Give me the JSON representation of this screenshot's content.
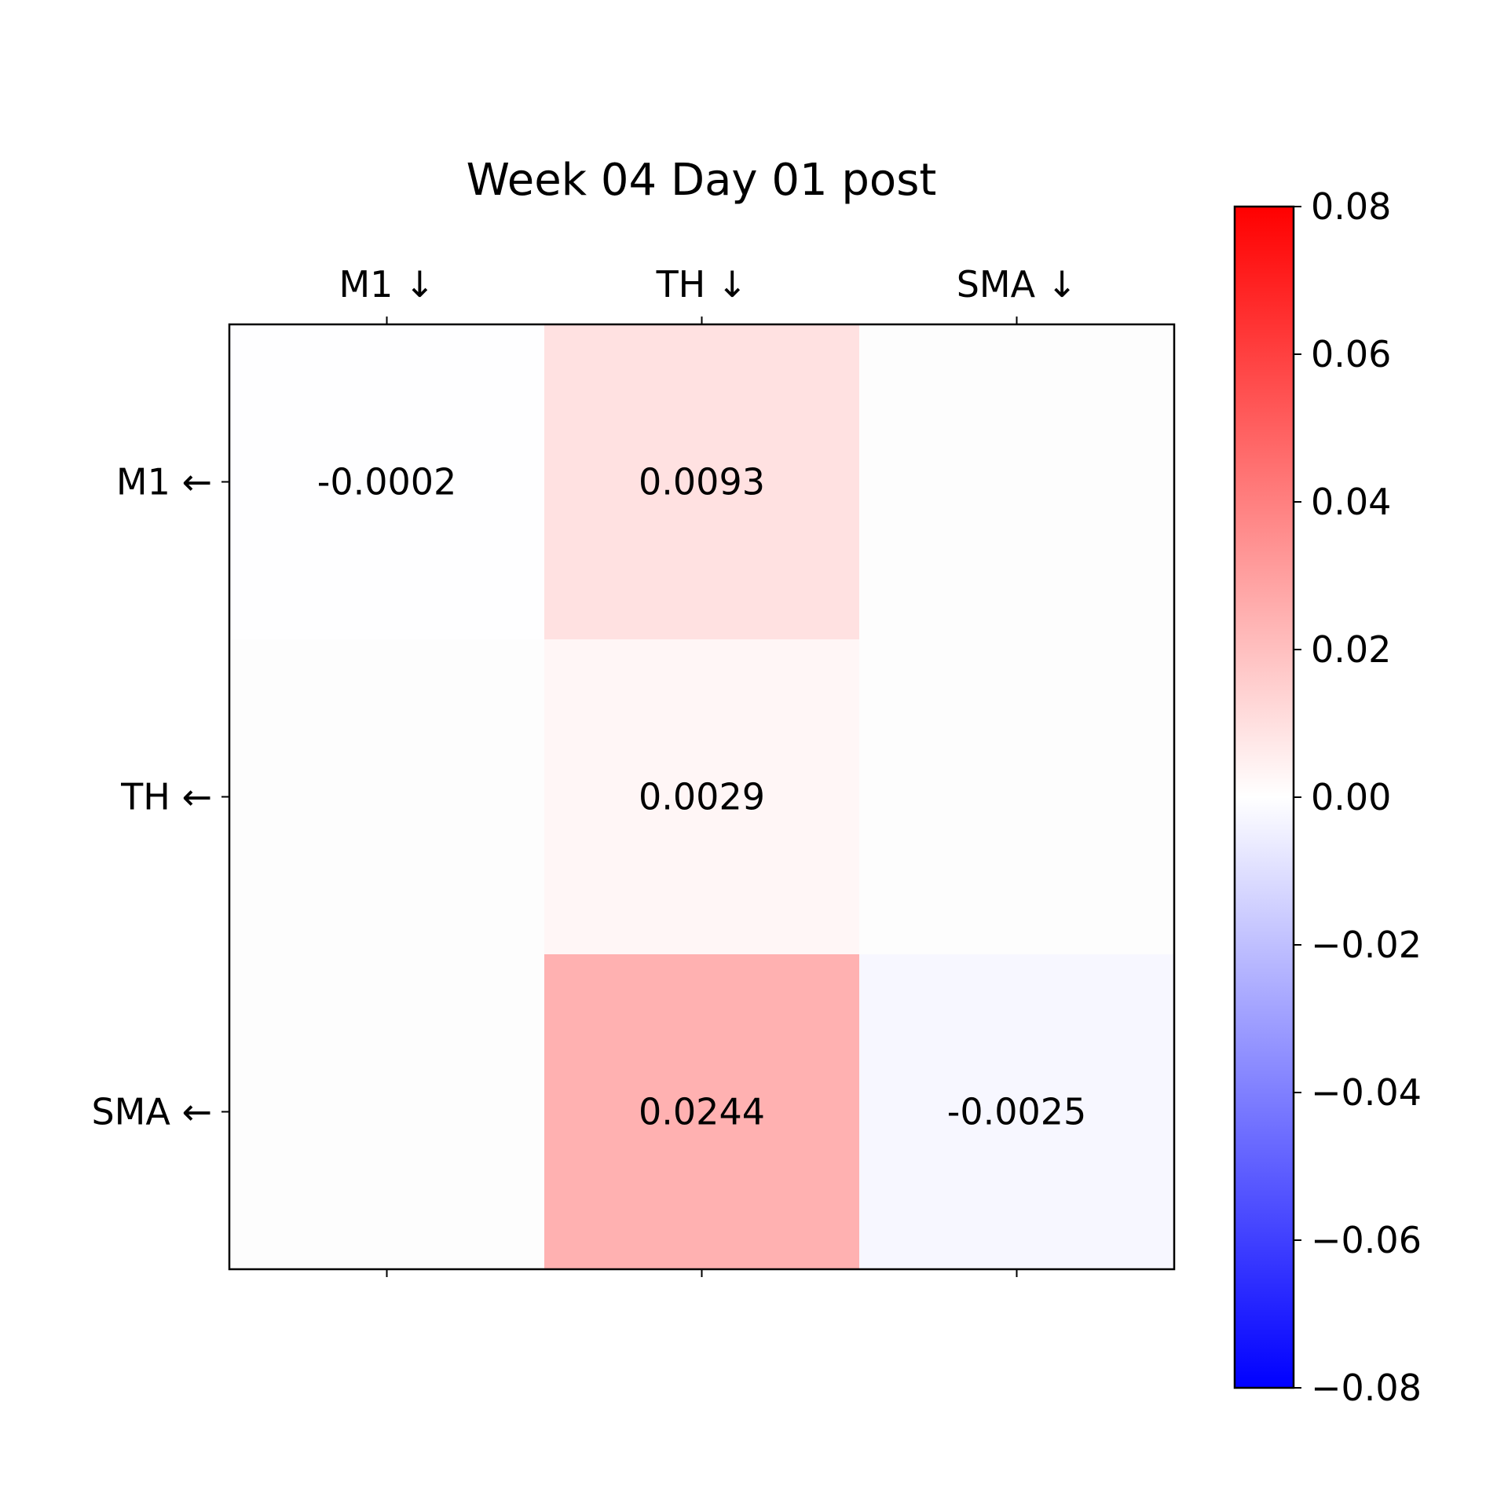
{
  "chart_data": {
    "type": "heatmap",
    "title": "Week 04 Day 01 post",
    "x_categories": [
      "M1 ↓",
      "TH ↓",
      "SMA ↓"
    ],
    "y_categories": [
      "M1 ←",
      "TH ←",
      "SMA ←"
    ],
    "values": [
      [
        -0.0002,
        0.0093,
        null
      ],
      [
        null,
        0.0029,
        null
      ],
      [
        null,
        0.0244,
        -0.0025
      ]
    ],
    "cell_labels": [
      [
        "-0.0002",
        "0.0093",
        ""
      ],
      [
        "",
        "0.0029",
        ""
      ],
      [
        "",
        "0.0244",
        "-0.0025"
      ]
    ],
    "colormap": {
      "name": "bwr",
      "low_color": "#0000ff",
      "mid_color": "#ffffff",
      "high_color": "#ff0000",
      "vmin": -0.08,
      "vmax": 0.08
    },
    "colorbar": {
      "ticks": [
        0.08,
        0.06,
        0.04,
        0.02,
        0.0,
        -0.02,
        -0.04,
        -0.06,
        -0.08
      ],
      "tick_labels": [
        "0.08",
        "0.06",
        "0.04",
        "0.02",
        "0.00",
        "−0.02",
        "−0.04",
        "−0.06",
        "−0.08"
      ],
      "placement": "right"
    },
    "x_axis_position": "top",
    "grid": false
  }
}
